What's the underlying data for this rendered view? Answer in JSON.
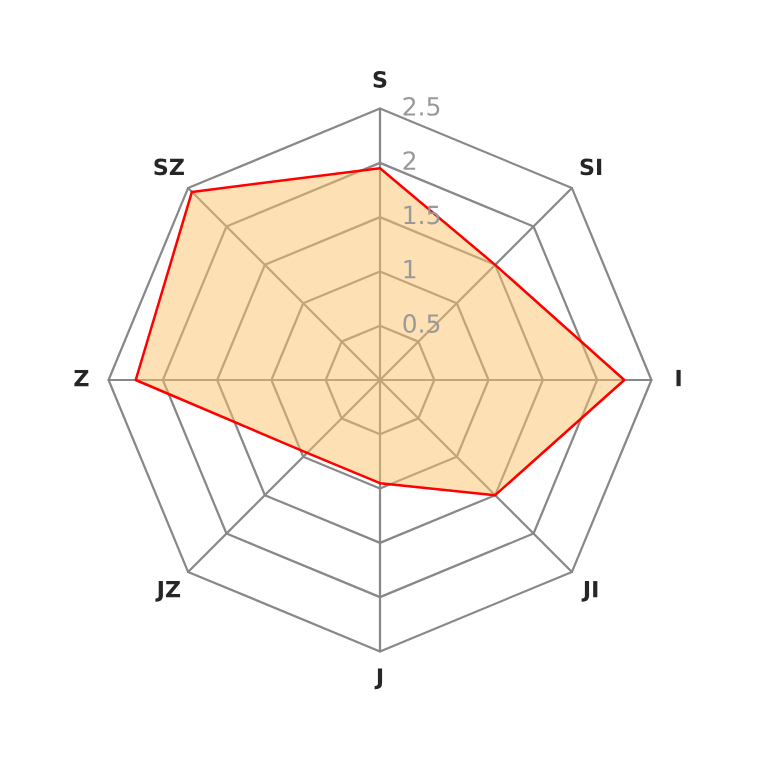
{
  "chart_data": {
    "type": "radar",
    "categories": [
      "S",
      "SI",
      "I",
      "JI",
      "J",
      "JZ",
      "Z",
      "SZ"
    ],
    "series": [
      {
        "color": "#ff0000",
        "values": [
          1.95,
          1.5,
          2.25,
          1.5,
          0.95,
          0.95,
          2.25,
          2.45
        ]
      }
    ],
    "ylim": [
      0,
      2.5
    ],
    "yticks": [
      0.5,
      1,
      1.5,
      2,
      2.5
    ],
    "grid": true
  }
}
